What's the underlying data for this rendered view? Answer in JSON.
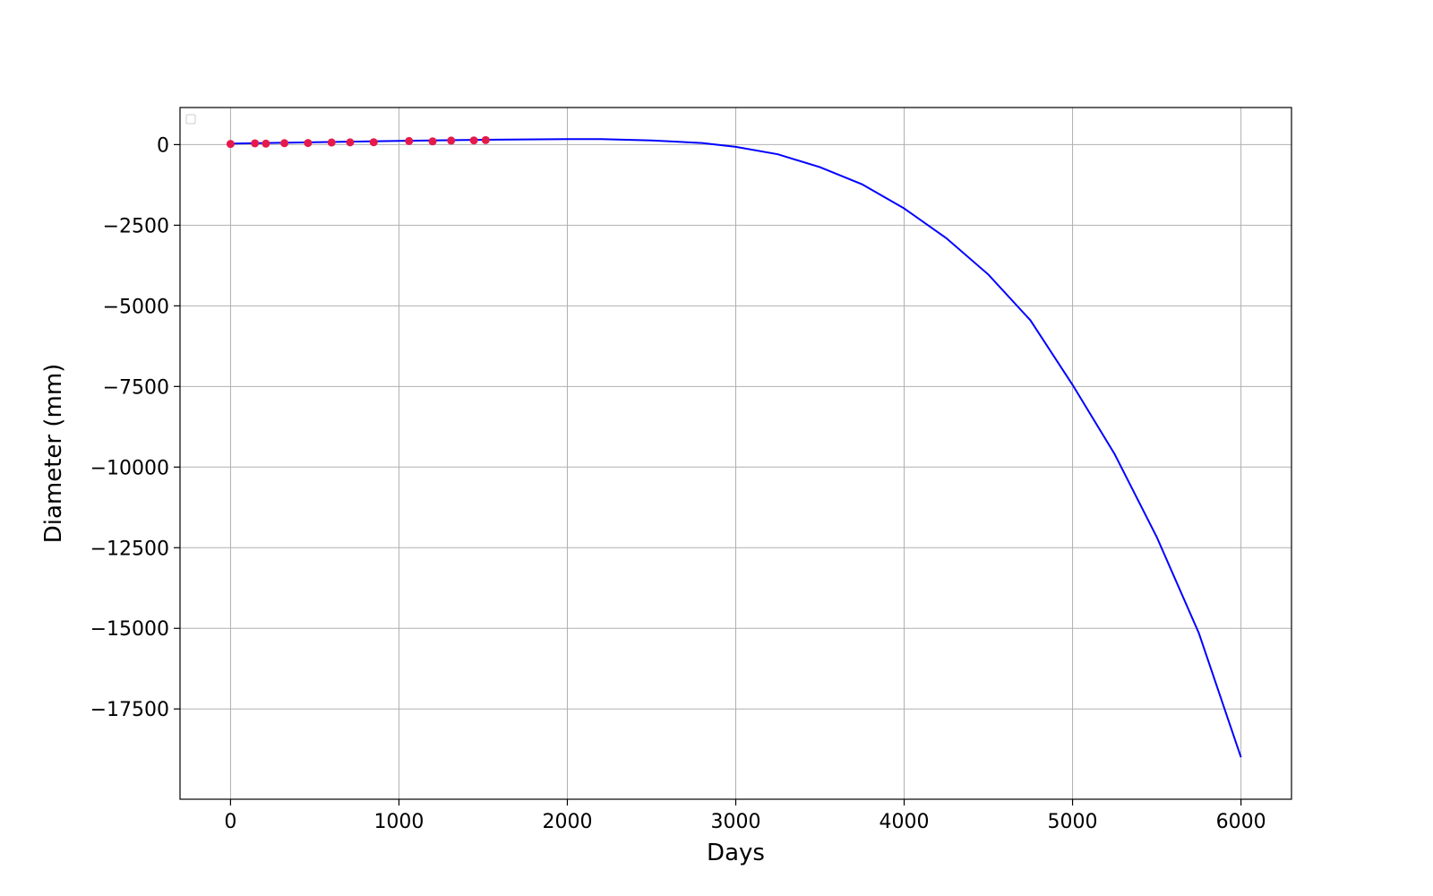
{
  "chart_data": {
    "type": "scatter",
    "title": "",
    "xlabel": "Days",
    "ylabel": "Diameter (mm)",
    "xlim": [
      -300,
      6300
    ],
    "ylim": [
      -20300,
      1150
    ],
    "x_ticks": [
      0,
      1000,
      2000,
      3000,
      4000,
      5000,
      6000
    ],
    "x_tick_labels": [
      "0",
      "1000",
      "2000",
      "3000",
      "4000",
      "5000",
      "6000"
    ],
    "y_ticks": [
      0,
      -2500,
      -5000,
      -7500,
      -10000,
      -12500,
      -15000,
      -17500
    ],
    "y_tick_labels": [
      "0",
      "−2500",
      "−5000",
      "−7500",
      "−10000",
      "−12500",
      "−15000",
      "−17500"
    ],
    "grid": true,
    "legend": {
      "placement": "top-left",
      "entries": []
    },
    "series": [
      {
        "kind": "scatter",
        "color": "#e6194b",
        "points": [
          {
            "x": 0,
            "y": 20
          },
          {
            "x": 145,
            "y": 40
          },
          {
            "x": 210,
            "y": 30
          },
          {
            "x": 320,
            "y": 45
          },
          {
            "x": 460,
            "y": 50
          },
          {
            "x": 600,
            "y": 65
          },
          {
            "x": 710,
            "y": 70
          },
          {
            "x": 850,
            "y": 75
          },
          {
            "x": 1060,
            "y": 110
          },
          {
            "x": 1200,
            "y": 100
          },
          {
            "x": 1310,
            "y": 125
          },
          {
            "x": 1445,
            "y": 130
          },
          {
            "x": 1515,
            "y": 140
          }
        ]
      },
      {
        "kind": "line",
        "color": "#0000ff",
        "points": [
          {
            "x": 0,
            "y": 30
          },
          {
            "x": 500,
            "y": 75
          },
          {
            "x": 1000,
            "y": 115
          },
          {
            "x": 1500,
            "y": 150
          },
          {
            "x": 2000,
            "y": 170
          },
          {
            "x": 2200,
            "y": 170
          },
          {
            "x": 2500,
            "y": 130
          },
          {
            "x": 2800,
            "y": 50
          },
          {
            "x": 3000,
            "y": -70
          },
          {
            "x": 3250,
            "y": -300
          },
          {
            "x": 3500,
            "y": -700
          },
          {
            "x": 3750,
            "y": -1230
          },
          {
            "x": 4000,
            "y": -1980
          },
          {
            "x": 4250,
            "y": -2900
          },
          {
            "x": 4500,
            "y": -4030
          },
          {
            "x": 4750,
            "y": -5450
          },
          {
            "x": 5000,
            "y": -7450
          },
          {
            "x": 5250,
            "y": -9600
          },
          {
            "x": 5500,
            "y": -12170
          },
          {
            "x": 5750,
            "y": -15150
          },
          {
            "x": 6000,
            "y": -19000
          }
        ]
      }
    ]
  }
}
